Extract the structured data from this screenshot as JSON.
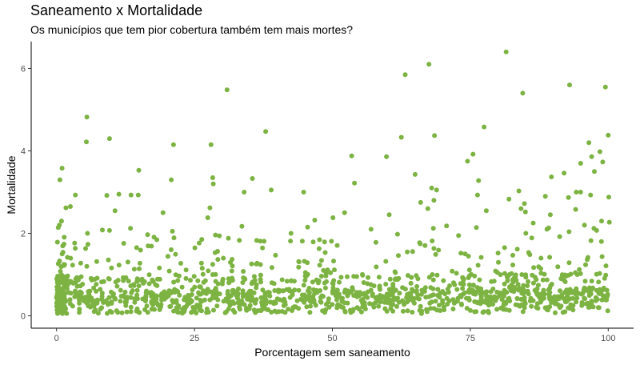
{
  "chart_data": {
    "type": "scatter",
    "title": "Saneamento x Mortalidade",
    "subtitle": "Os municípios que tem pior cobertura também tem mais mortes?",
    "xlabel": "Porcentagem sem saneamento",
    "ylabel": "Mortalidade",
    "xlim": [
      -4.6,
      104.6
    ],
    "ylim": [
      -0.3,
      6.65
    ],
    "x_ticks": [
      0,
      25,
      50,
      75,
      100
    ],
    "x_tick_labels": [
      "0",
      "25",
      "50",
      "75",
      "100"
    ],
    "y_ticks": [
      0,
      2,
      4,
      6
    ],
    "y_tick_labels": [
      "0",
      "2",
      "4",
      "6"
    ],
    "grid": false,
    "point_color": "#7cb342",
    "outliers": [
      {
        "x": 81.5,
        "y": 6.4
      },
      {
        "x": 67.5,
        "y": 6.1
      },
      {
        "x": 63.2,
        "y": 5.85
      },
      {
        "x": 93.0,
        "y": 5.6
      },
      {
        "x": 99.5,
        "y": 5.55
      },
      {
        "x": 30.9,
        "y": 5.48
      },
      {
        "x": 84.5,
        "y": 5.4
      },
      {
        "x": 5.5,
        "y": 4.82
      },
      {
        "x": 77.5,
        "y": 4.58
      },
      {
        "x": 37.9,
        "y": 4.47
      },
      {
        "x": 100.0,
        "y": 4.38
      },
      {
        "x": 68.5,
        "y": 4.37
      },
      {
        "x": 62.5,
        "y": 4.33
      },
      {
        "x": 9.6,
        "y": 4.3
      },
      {
        "x": 5.4,
        "y": 4.22
      },
      {
        "x": 96.5,
        "y": 4.2
      },
      {
        "x": 28.0,
        "y": 4.15
      },
      {
        "x": 21.2,
        "y": 4.15
      },
      {
        "x": 98.5,
        "y": 3.98
      },
      {
        "x": 75.5,
        "y": 3.92
      },
      {
        "x": 53.5,
        "y": 3.88
      },
      {
        "x": 59.8,
        "y": 3.86
      },
      {
        "x": 97.0,
        "y": 3.86
      },
      {
        "x": 74.5,
        "y": 3.75
      },
      {
        "x": 99.0,
        "y": 3.73
      },
      {
        "x": 95.0,
        "y": 3.7
      },
      {
        "x": 1.0,
        "y": 3.58
      },
      {
        "x": 14.9,
        "y": 3.53
      },
      {
        "x": 97.5,
        "y": 3.5
      },
      {
        "x": 92.0,
        "y": 3.46
      },
      {
        "x": 65.0,
        "y": 3.43
      },
      {
        "x": 89.7,
        "y": 3.37
      },
      {
        "x": 28.3,
        "y": 3.35
      },
      {
        "x": 35.5,
        "y": 3.33
      },
      {
        "x": 0.6,
        "y": 3.3
      },
      {
        "x": 20.8,
        "y": 3.3
      },
      {
        "x": 76.5,
        "y": 3.28
      },
      {
        "x": 54.0,
        "y": 3.22
      },
      {
        "x": 28.4,
        "y": 3.2
      },
      {
        "x": 68.0,
        "y": 3.1
      },
      {
        "x": 38.9,
        "y": 3.05
      },
      {
        "x": 68.9,
        "y": 3.05
      },
      {
        "x": 83.8,
        "y": 3.03
      },
      {
        "x": 94.2,
        "y": 3.0
      },
      {
        "x": 34.0,
        "y": 3.0
      },
      {
        "x": 95.0,
        "y": 3.0
      },
      {
        "x": 44.8,
        "y": 3.0
      },
      {
        "x": 11.3,
        "y": 2.95
      },
      {
        "x": 3.4,
        "y": 2.93
      },
      {
        "x": 13.5,
        "y": 2.93
      },
      {
        "x": 14.8,
        "y": 2.93
      },
      {
        "x": 76.3,
        "y": 2.93
      },
      {
        "x": 96.8,
        "y": 2.93
      },
      {
        "x": 9.1,
        "y": 2.92
      },
      {
        "x": 88.6,
        "y": 2.9
      },
      {
        "x": 100.1,
        "y": 2.88
      },
      {
        "x": 92.8,
        "y": 2.87
      },
      {
        "x": 82.0,
        "y": 2.83
      },
      {
        "x": 68.4,
        "y": 2.8
      },
      {
        "x": 66.0,
        "y": 2.75
      },
      {
        "x": 84.8,
        "y": 2.72
      },
      {
        "x": 2.5,
        "y": 2.65
      },
      {
        "x": 1.7,
        "y": 2.62
      },
      {
        "x": 27.8,
        "y": 2.62
      },
      {
        "x": 84.2,
        "y": 2.6
      },
      {
        "x": 67.3,
        "y": 2.6
      },
      {
        "x": 94.1,
        "y": 2.58
      },
      {
        "x": 77.9,
        "y": 2.55
      },
      {
        "x": 10.6,
        "y": 2.55
      },
      {
        "x": 85.0,
        "y": 2.52
      },
      {
        "x": 52.2,
        "y": 2.5
      },
      {
        "x": 19.3,
        "y": 2.5
      },
      {
        "x": 60.3,
        "y": 2.45
      },
      {
        "x": 89.5,
        "y": 2.45
      },
      {
        "x": 27.4,
        "y": 2.38
      },
      {
        "x": 50.1,
        "y": 2.38
      },
      {
        "x": 46.8,
        "y": 2.32
      },
      {
        "x": 98.8,
        "y": 2.3
      },
      {
        "x": 0.9,
        "y": 2.3
      },
      {
        "x": 100.2,
        "y": 2.27
      },
      {
        "x": 86.4,
        "y": 2.25
      },
      {
        "x": 0.5,
        "y": 2.2
      },
      {
        "x": 95.7,
        "y": 2.2
      },
      {
        "x": 70.7,
        "y": 2.18
      },
      {
        "x": 33.6,
        "y": 2.17
      },
      {
        "x": 45.5,
        "y": 2.15
      },
      {
        "x": 0.3,
        "y": 2.14
      },
      {
        "x": 76.1,
        "y": 2.14
      },
      {
        "x": 89.2,
        "y": 2.13
      },
      {
        "x": 13.4,
        "y": 2.12
      },
      {
        "x": 68.3,
        "y": 2.12
      },
      {
        "x": 97.4,
        "y": 2.12
      },
      {
        "x": 57.0,
        "y": 2.1
      },
      {
        "x": 88.9,
        "y": 2.1
      },
      {
        "x": 8.3,
        "y": 2.08
      },
      {
        "x": 9.6,
        "y": 2.07
      },
      {
        "x": 97.9,
        "y": 2.07
      },
      {
        "x": 21.0,
        "y": 2.05
      },
      {
        "x": 92.9,
        "y": 2.04
      },
      {
        "x": 5.6,
        "y": 2.0
      },
      {
        "x": 42.5,
        "y": 2.0
      },
      {
        "x": 61.8,
        "y": 1.98
      },
      {
        "x": 16.5,
        "y": 1.97
      }
    ],
    "main_cluster": {
      "x_range": [
        0,
        100
      ],
      "y_range": [
        0.0,
        2.0
      ],
      "point_count": 1350,
      "note": "dense band of points, densest between 0.1 and 0.8, mean near 0.45, slightly higher toward x = 100"
    }
  }
}
